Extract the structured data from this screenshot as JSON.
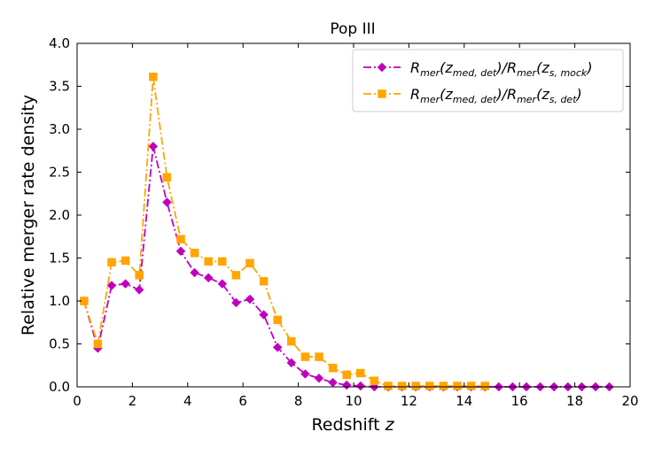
{
  "chart_data": {
    "type": "line",
    "title": "Pop III",
    "xlabel": "Redshift",
    "xlabel_var": "z",
    "ylabel": "Relative merger rate density",
    "xlim": [
      0,
      20
    ],
    "ylim": [
      0,
      4.0
    ],
    "xticks": [
      0,
      2,
      4,
      6,
      8,
      10,
      12,
      14,
      16,
      18,
      20
    ],
    "yticks": [
      "0.0",
      "0.5",
      "1.0",
      "1.5",
      "2.0",
      "2.5",
      "3.0",
      "3.5",
      "4.0"
    ],
    "legend_position": "top-right",
    "series": [
      {
        "name": "R_mer(z_med,det)/R_mer(z_s,mock)",
        "legend_parts": {
          "r1": "R",
          "r1sub": "mer",
          "z1": "(z",
          "z1sub": "med, det",
          "mid": ")/R",
          "r2sub": "mer",
          "z2": "(z",
          "z2sub": "s, mock",
          "end": ")"
        },
        "color": "#bf00bf",
        "marker": "diamond",
        "x": [
          0.25,
          0.75,
          1.25,
          1.75,
          2.25,
          2.75,
          3.25,
          3.75,
          4.25,
          4.75,
          5.25,
          5.75,
          6.25,
          6.75,
          7.25,
          7.75,
          8.25,
          8.75,
          9.25,
          9.75,
          10.25,
          10.75,
          11.25,
          11.75,
          12.25,
          12.75,
          13.25,
          13.75,
          14.25,
          14.75,
          15.25,
          15.75,
          16.25,
          16.75,
          17.25,
          17.75,
          18.25,
          18.75,
          19.25
        ],
        "values": [
          1.0,
          0.45,
          1.18,
          1.2,
          1.13,
          2.8,
          2.15,
          1.58,
          1.33,
          1.27,
          1.2,
          0.98,
          1.02,
          0.84,
          0.46,
          0.28,
          0.15,
          0.1,
          0.05,
          0.02,
          0.01,
          0.0,
          0.0,
          0.0,
          0.0,
          0.0,
          0.0,
          0.0,
          0.0,
          0.0,
          0.0,
          0.0,
          0.0,
          0.0,
          0.0,
          0.0,
          0.0,
          0.0,
          0.0
        ]
      },
      {
        "name": "R_mer(z_med,det)/R_mer(z_s,det)",
        "legend_parts": {
          "r1": "R",
          "r1sub": "mer",
          "z1": "(z",
          "z1sub": "med, det",
          "mid": ")/R",
          "r2sub": "mer",
          "z2": "(z",
          "z2sub": "s, det",
          "end": ")"
        },
        "color": "#ffa500",
        "marker": "square",
        "x": [
          0.25,
          0.75,
          1.25,
          1.75,
          2.25,
          2.75,
          3.25,
          3.75,
          4.25,
          4.75,
          5.25,
          5.75,
          6.25,
          6.75,
          7.25,
          7.75,
          8.25,
          8.75,
          9.25,
          9.75,
          10.25,
          10.75,
          11.25,
          11.75,
          12.25,
          12.75,
          13.25,
          13.75,
          14.25,
          14.75
        ],
        "values": [
          1.0,
          0.5,
          1.45,
          1.47,
          1.3,
          3.61,
          2.44,
          1.72,
          1.56,
          1.46,
          1.46,
          1.3,
          1.44,
          1.23,
          0.78,
          0.53,
          0.35,
          0.35,
          0.22,
          0.14,
          0.16,
          0.07,
          0.01,
          0.01,
          0.01,
          0.01,
          0.01,
          0.01,
          0.01,
          0.01
        ]
      }
    ]
  }
}
